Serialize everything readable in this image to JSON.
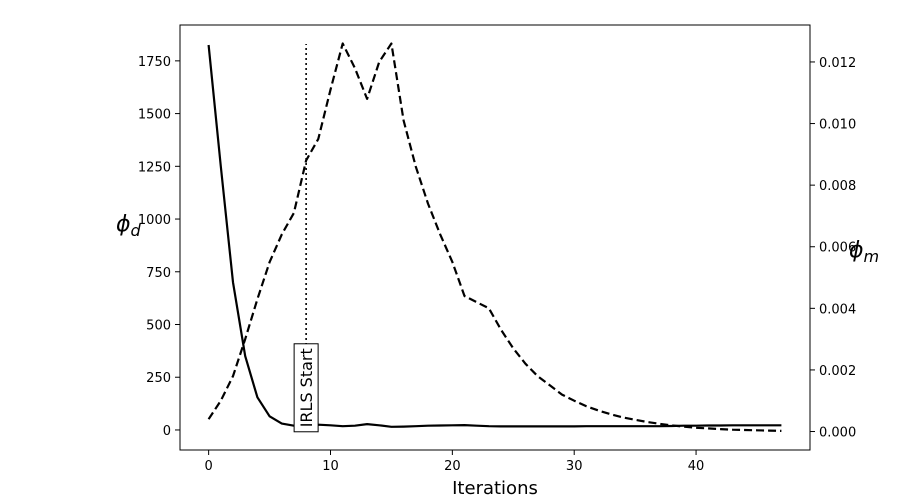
{
  "chart_data": {
    "type": "line",
    "xlabel": "Iterations",
    "ylabel_left": "φ_d",
    "ylabel_right": "φ_m",
    "xlim": [
      -2.35,
      49.35
    ],
    "ylim_left": [
      -95,
      1920
    ],
    "ylim_right": [
      -0.0006,
      0.0132
    ],
    "x_ticks": [
      0,
      10,
      20,
      30,
      40
    ],
    "y_left_ticks": [
      0,
      250,
      500,
      750,
      1000,
      1250,
      1500,
      1750
    ],
    "y_right_ticks": [
      0.0,
      0.002,
      0.004,
      0.006,
      0.008,
      0.01,
      0.012
    ],
    "y_right_tick_labels": [
      "0.000",
      "0.002",
      "0.004",
      "0.006",
      "0.008",
      "0.010",
      "0.012"
    ],
    "series": [
      {
        "axis": "left",
        "style": "solid",
        "x": [
          0,
          1,
          2,
          3,
          4,
          5,
          6,
          7,
          8,
          9,
          10,
          11,
          12,
          13,
          14,
          15,
          16,
          17,
          18,
          19,
          20,
          21,
          22,
          23,
          24,
          25,
          26,
          27,
          28,
          29,
          30,
          31,
          32,
          33,
          34,
          35,
          36,
          37,
          38,
          39,
          40,
          41,
          42,
          43,
          44,
          45,
          46,
          47
        ],
        "y": [
          1825,
          1250,
          700,
          350,
          155,
          65,
          30,
          20,
          20,
          25,
          22,
          18,
          20,
          28,
          22,
          15,
          16,
          18,
          20,
          21,
          22,
          23,
          20,
          18,
          17,
          17,
          17,
          17,
          17,
          17,
          17,
          18,
          18,
          18,
          18,
          18,
          18,
          18,
          19,
          20,
          20,
          21,
          21,
          22,
          22,
          22,
          22,
          22
        ]
      },
      {
        "axis": "right",
        "style": "dashed",
        "x": [
          0,
          1,
          2,
          3,
          4,
          5,
          6,
          7,
          8,
          9,
          10,
          11,
          12,
          13,
          14,
          15,
          16,
          17,
          18,
          19,
          20,
          21,
          22,
          23,
          24,
          25,
          26,
          27,
          28,
          29,
          30,
          31,
          32,
          33,
          34,
          35,
          36,
          37,
          38,
          39,
          40,
          41,
          42,
          43,
          44,
          45,
          46,
          47
        ],
        "y": [
          0.0004,
          0.001,
          0.0018,
          0.003,
          0.0043,
          0.0055,
          0.0064,
          0.0071,
          0.0088,
          0.0095,
          0.0111,
          0.0126,
          0.0118,
          0.0108,
          0.012,
          0.0126,
          0.0101,
          0.0086,
          0.0074,
          0.0064,
          0.0055,
          0.0044,
          0.0042,
          0.004,
          0.0033,
          0.0027,
          0.0022,
          0.0018,
          0.0015,
          0.0012,
          0.001,
          0.00082,
          0.00068,
          0.00056,
          0.00046,
          0.00038,
          0.00031,
          0.00025,
          0.0002,
          0.00016,
          0.00012,
          0.0001,
          8e-05,
          6e-05,
          5e-05,
          4e-05,
          3e-05,
          2e-05
        ]
      }
    ],
    "vline": {
      "x": 8,
      "style": "dotted",
      "y_from": 0,
      "y_to": 1830
    },
    "annotation": {
      "text": "IRLS Start",
      "x": 8,
      "y": 200,
      "rotation": 90
    }
  }
}
